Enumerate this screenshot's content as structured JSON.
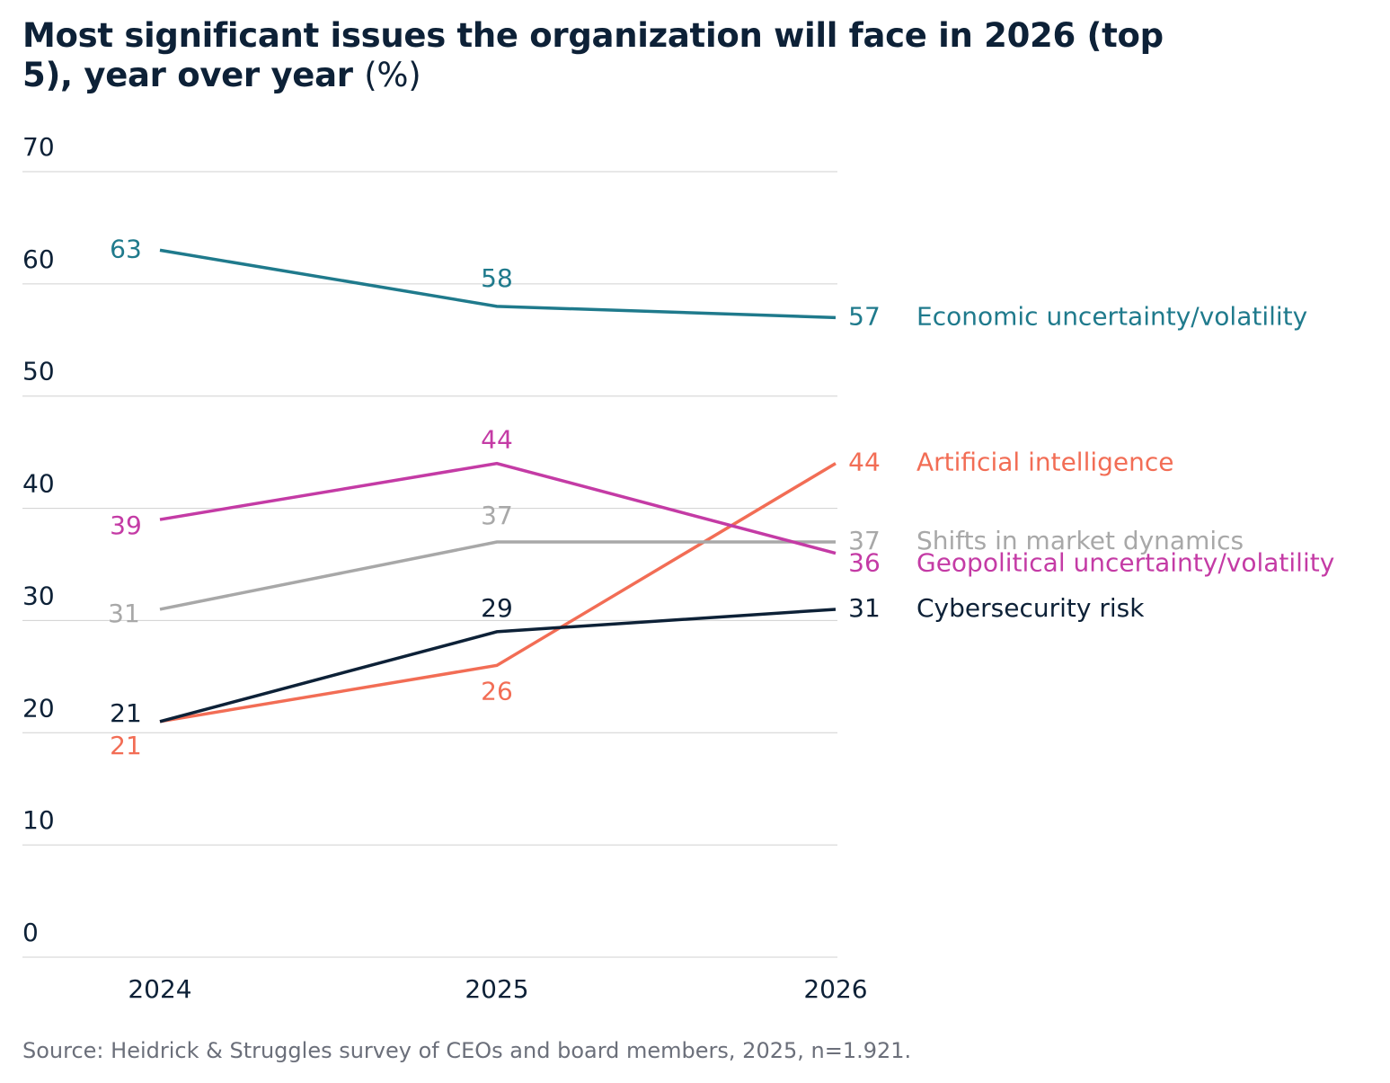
{
  "chart_data": {
    "type": "line",
    "title": "Most significant issues the organization will face in 2026 (top 5), year over year",
    "y_unit": "(%)",
    "x": [
      "2024",
      "2025",
      "2026"
    ],
    "ylim": [
      0,
      70
    ],
    "yticks": [
      0,
      10,
      20,
      30,
      40,
      50,
      60,
      70
    ],
    "grid": true,
    "series": [
      {
        "name": "Economic uncertainty/volatility",
        "color": "#1f7a8c",
        "values": [
          63,
          58,
          57
        ]
      },
      {
        "name": "Artificial intelligence",
        "color": "#f26d55",
        "values": [
          21,
          26,
          44
        ]
      },
      {
        "name": "Shifts in market dynamics",
        "color": "#a8a8a8",
        "values": [
          31,
          37,
          37
        ]
      },
      {
        "name": "Geopolitical uncertainty/volatility",
        "color": "#c43ba5",
        "values": [
          39,
          44,
          36
        ]
      },
      {
        "name": "Cybersecurity risk",
        "color": "#0d2137",
        "values": [
          21,
          29,
          31
        ]
      }
    ],
    "source": "Source: Heidrick & Struggles survey of CEOs and board members, 2025, n=1.921."
  }
}
